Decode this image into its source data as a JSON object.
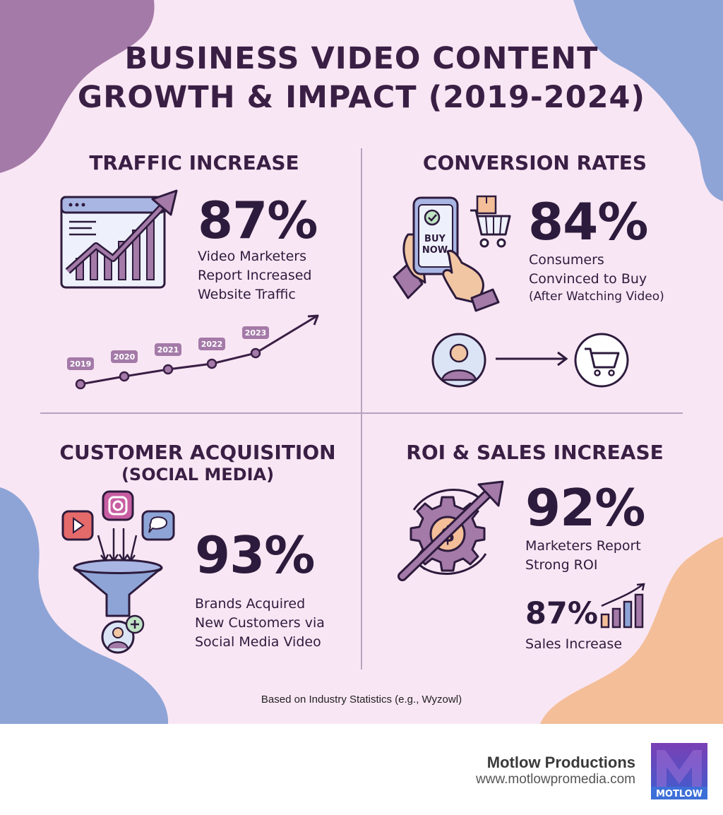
{
  "title": {
    "line1": "BUSINESS VIDEO CONTENT",
    "line2": "GROWTH & IMPACT (2019-2024)"
  },
  "traffic": {
    "heading": "TRAFFIC INCREASE",
    "stat": "87%",
    "desc": [
      "Video Marketers",
      "Report Increased",
      "Website Traffic"
    ],
    "timeline_years": [
      "2019",
      "2020",
      "2021",
      "2022",
      "2023"
    ]
  },
  "conversion": {
    "heading": "CONVERSION RATES",
    "stat": "84%",
    "desc": [
      "Consumers",
      "Convinced to Buy",
      "(After Watching Video)"
    ],
    "phone_label": [
      "BUY",
      "NOW"
    ]
  },
  "acquisition": {
    "heading": "CUSTOMER ACQUISITION",
    "subheading": "(SOCIAL MEDIA)",
    "stat": "93%",
    "desc": [
      "Brands Acquired",
      "New Customers via",
      "Social Media Video"
    ]
  },
  "roi": {
    "heading": "ROI & SALES INCREASE",
    "stat": "92%",
    "desc": [
      "Marketers Report",
      "Strong ROI"
    ],
    "sub_stat": "87%",
    "sub_desc": "Sales Increase"
  },
  "source_note": "Based on Industry Statistics (e.g., Wyzowl)",
  "footer": {
    "brand": "Motlow Productions",
    "url": "www.motlowpromedia.com",
    "logo_text": "MOTLOW"
  },
  "colors": {
    "background": "#f9e6f4",
    "purple": "#a47aa8",
    "blue": "#8ea4d6",
    "peach": "#f3be98",
    "dark": "#2d1b3d"
  },
  "icons": [
    "browser-chart-icon",
    "trend-arrow-icon",
    "phone-buy-now-icon",
    "shopping-cart-icon",
    "user-icon",
    "arrow-right-icon",
    "youtube-icon",
    "instagram-icon",
    "chat-icon",
    "funnel-icon",
    "add-user-icon",
    "gear-dollar-icon",
    "bar-chart-icon"
  ]
}
